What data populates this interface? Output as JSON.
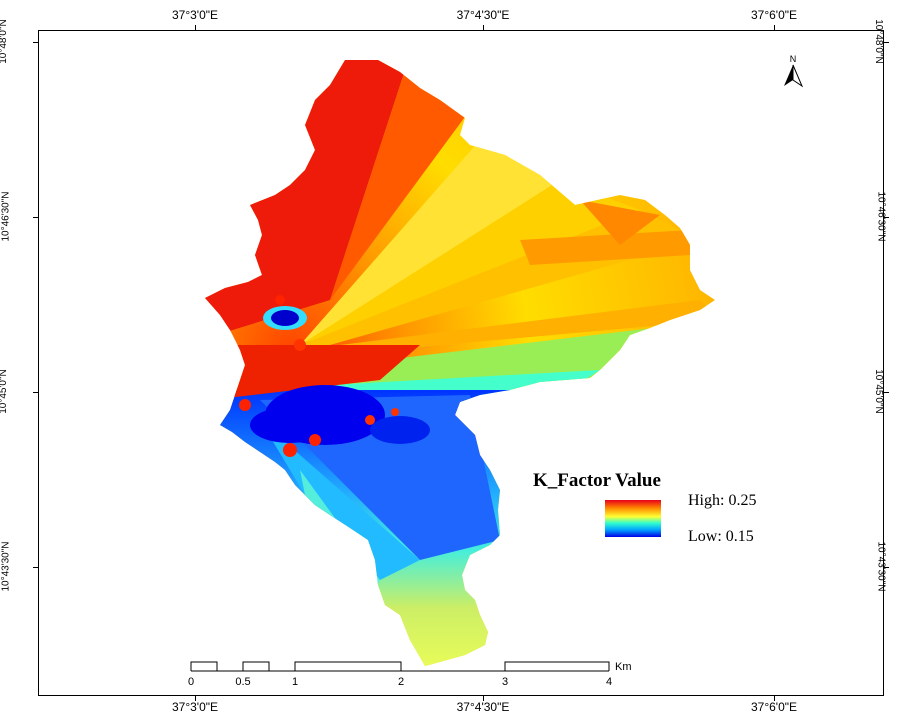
{
  "grid": {
    "top_labels": [
      "37°3'0\"E",
      "37°4'30\"E",
      "37°6'0\"E"
    ],
    "bottom_labels": [
      "37°3'0\"E",
      "37°4'30\"E",
      "37°6'0\"E"
    ],
    "left_labels": [
      "10°48'0\"N",
      "10°46'30\"N",
      "10°45'0\"N",
      "10°43'30\"N"
    ],
    "right_labels": [
      "10°48'0\"N",
      "10°46'30\"N",
      "10°45'0\"N",
      "10°43'30\"N"
    ]
  },
  "north": {
    "label": "N",
    "icon": "north-arrow-icon"
  },
  "legend": {
    "title": "K_Factor Value",
    "high": "High: 0.25",
    "low": "Low: 0.15",
    "colors": [
      "#e8001a",
      "#ff8a00",
      "#ffff33",
      "#33ffcc",
      "#00a8ff",
      "#0000e6"
    ]
  },
  "scale_bar": {
    "labels": [
      "0",
      "0.5",
      "1",
      "2",
      "3",
      "4"
    ],
    "unit": "Km"
  }
}
